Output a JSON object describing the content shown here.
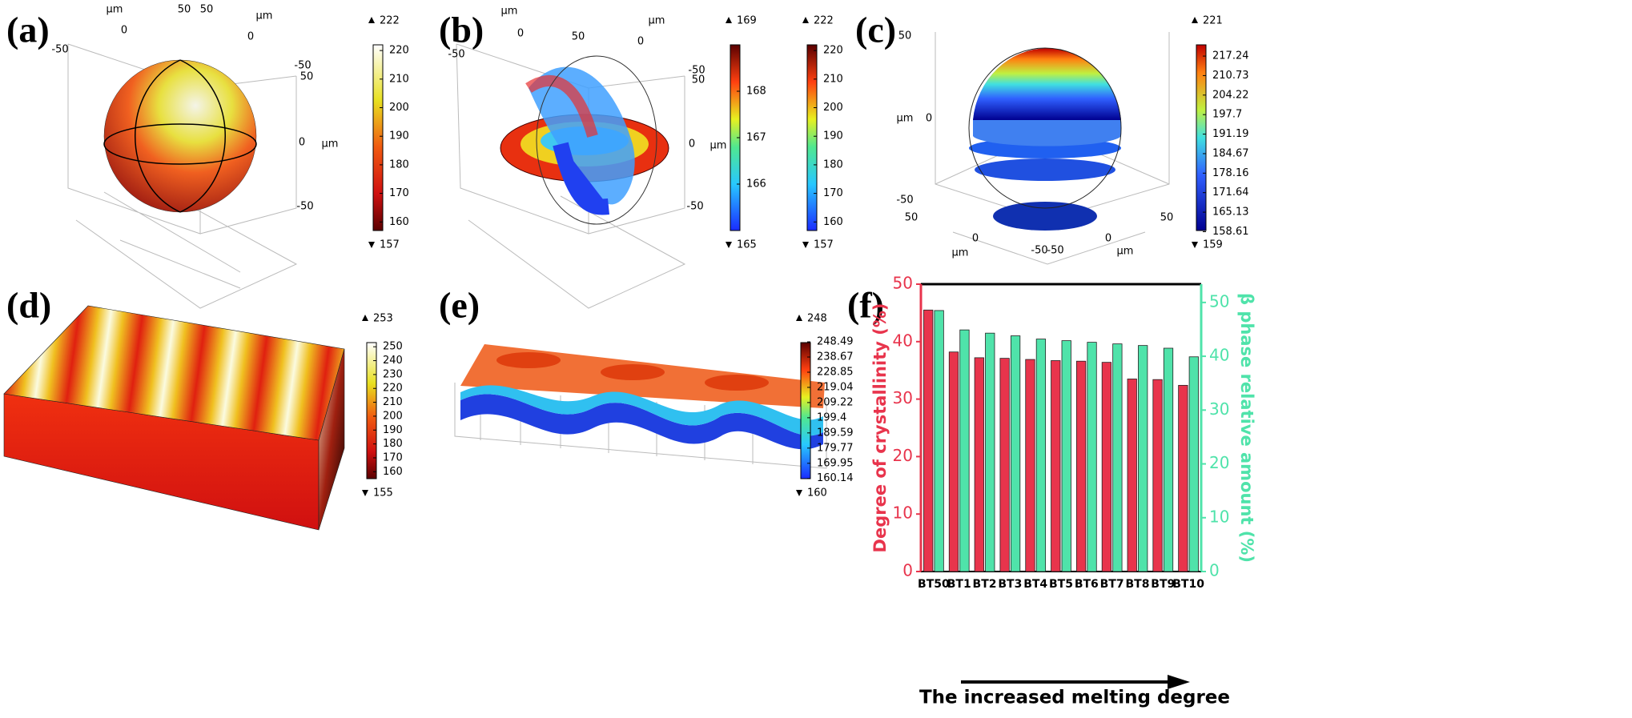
{
  "panels": {
    "a": {
      "label": "(a)",
      "axis_texts": [
        "μm",
        50,
        50,
        "μm",
        0,
        0,
        -50,
        -50,
        50,
        0,
        "μm",
        -50
      ],
      "colorbars": [
        {
          "max": 222,
          "min": 157,
          "ticks": [
            160,
            170,
            180,
            190,
            200,
            210,
            220
          ]
        }
      ]
    },
    "b": {
      "label": "(b)",
      "axis_texts": [
        "μm",
        50,
        "μm",
        0,
        0,
        -50,
        -50,
        50,
        0,
        "μm",
        -50
      ],
      "colorbars": [
        {
          "max": 169,
          "min": 165,
          "ticks": [
            166,
            167,
            168
          ]
        },
        {
          "max": 222,
          "min": 157,
          "ticks": [
            160,
            170,
            180,
            190,
            200,
            210,
            220
          ]
        }
      ]
    },
    "c": {
      "label": "(c)",
      "axis_texts": [
        50,
        "μm",
        0,
        -50,
        50,
        50,
        0,
        0,
        -50,
        -50,
        "μm",
        "μm"
      ],
      "colorbars": [
        {
          "max": 221,
          "min": 159,
          "ticks": [
            217.24,
            210.73,
            204.22,
            197.7,
            191.19,
            184.67,
            178.16,
            171.64,
            165.13,
            158.61
          ]
        }
      ]
    },
    "d": {
      "label": "(d)",
      "colorbars": [
        {
          "max": 253,
          "min": 155,
          "ticks": [
            160,
            170,
            180,
            190,
            200,
            210,
            220,
            230,
            240,
            250
          ]
        }
      ]
    },
    "e": {
      "label": "(e)",
      "colorbars": [
        {
          "max": 248,
          "min": 160,
          "ticks": [
            248.49,
            238.67,
            228.85,
            219.04,
            209.22,
            199.4,
            189.59,
            179.77,
            169.95,
            160.14
          ]
        }
      ]
    },
    "f": {
      "label": "(f)"
    }
  },
  "chart_data": {
    "type": "bar",
    "categories": [
      "BT50",
      "BT1",
      "BT2",
      "BT3",
      "BT4",
      "BT5",
      "BT6",
      "BT7",
      "BT8",
      "BT9",
      "BT10"
    ],
    "series": [
      {
        "color": "#e8344c",
        "values": [
          45.5,
          38.2,
          37.2,
          37.1,
          36.9,
          36.7,
          36.6,
          36.4,
          33.5,
          33.4,
          32.4
        ]
      },
      {
        "color": "#4fe3aa",
        "axis": "y2",
        "values": [
          48.5,
          44.9,
          44.3,
          43.8,
          43.2,
          42.9,
          42.6,
          42.3,
          42.0,
          41.5,
          39.9
        ]
      }
    ],
    "ylabel": "Degree of crystallinity (%)",
    "y2label": "β phase relative amount (%)",
    "xlabel": "The increased melting degree",
    "ylim": [
      0,
      50
    ],
    "yticks": [
      0,
      10,
      20,
      30,
      40,
      50
    ],
    "y2lim": [
      0,
      53.4
    ],
    "y2ticks": [
      0,
      10,
      20,
      30,
      40,
      50
    ]
  }
}
